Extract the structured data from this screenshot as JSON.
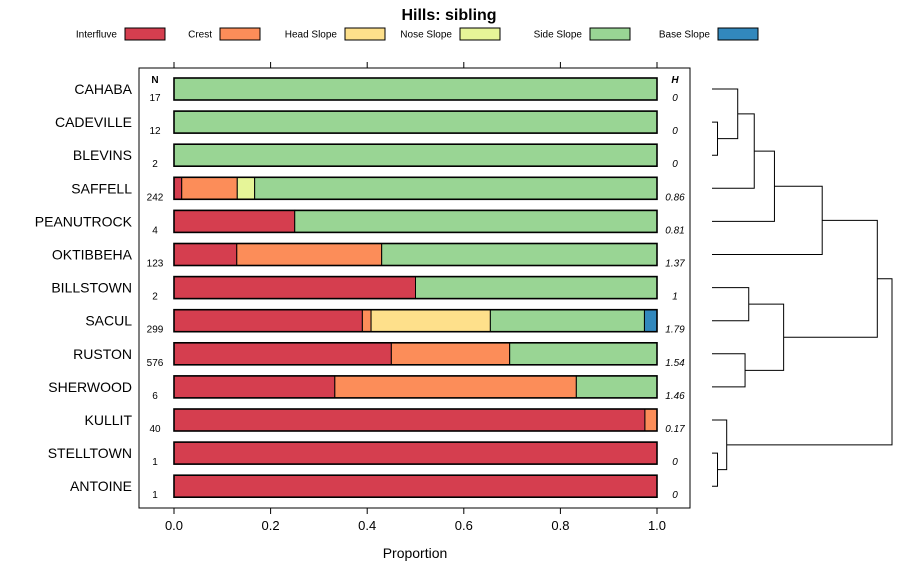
{
  "chart_data": {
    "type": "bar",
    "stacked": true,
    "orientation": "horizontal",
    "title": "Hills: sibling",
    "xlabel": "Proportion",
    "ylabel": "",
    "xlim": [
      0,
      1
    ],
    "x_ticks": [
      "0.0",
      "0.2",
      "0.4",
      "0.6",
      "0.8",
      "1.0"
    ],
    "legend_position": "top",
    "grid": false,
    "n_header": "N",
    "h_header": "H",
    "categories": [
      "CAHABA",
      "CADEVILLE",
      "BLEVINS",
      "SAFFELL",
      "PEANUTROCK",
      "OKTIBBEHA",
      "BILLSTOWN",
      "SACUL",
      "RUSTON",
      "SHERWOOD",
      "KULLIT",
      "STELLTOWN",
      "ANTOINE"
    ],
    "n": [
      "17",
      "12",
      "2",
      "242",
      "4",
      "123",
      "2",
      "299",
      "576",
      "6",
      "40",
      "1",
      "1"
    ],
    "h": [
      "0",
      "0",
      "0",
      "0.86",
      "0.81",
      "1.37",
      "1",
      "1.79",
      "1.54",
      "1.46",
      "0.17",
      "0",
      "0"
    ],
    "series": [
      {
        "name": "Interfluve",
        "color": "#D53E4F",
        "values": [
          0,
          0,
          0,
          0.016,
          0.25,
          0.13,
          0.5,
          0.39,
          0.45,
          0.333,
          0.975,
          1,
          1
        ]
      },
      {
        "name": "Crest",
        "color": "#FC8D59",
        "values": [
          0,
          0,
          0,
          0.115,
          0,
          0.3,
          0,
          0.018,
          0.245,
          0.5,
          0.025,
          0,
          0
        ]
      },
      {
        "name": "Head Slope",
        "color": "#FEE08B",
        "values": [
          0,
          0,
          0,
          0,
          0,
          0,
          0,
          0.247,
          0,
          0,
          0,
          0,
          0
        ]
      },
      {
        "name": "Nose Slope",
        "color": "#E6F598",
        "values": [
          0,
          0,
          0,
          0.036,
          0,
          0,
          0,
          0,
          0,
          0,
          0,
          0,
          0
        ]
      },
      {
        "name": "Side Slope",
        "color": "#99D594",
        "values": [
          1,
          1,
          1,
          0.833,
          0.75,
          0.57,
          0.5,
          0.319,
          0.305,
          0.167,
          0,
          0,
          0
        ]
      },
      {
        "name": "Base Slope",
        "color": "#3288BD",
        "values": [
          0,
          0,
          0,
          0,
          0,
          0,
          0,
          0.026,
          0,
          0,
          0,
          0,
          0
        ]
      }
    ],
    "dendrogram": {
      "merges": [
        {
          "a": "CADEVILLE",
          "b": "BLEVINS",
          "height": 0.3
        },
        {
          "a": "CAHABA",
          "b": "m0",
          "height": 1.4
        },
        {
          "a": "STELLTOWN",
          "b": "ANTOINE",
          "height": 0.3
        },
        {
          "a": "KULLIT",
          "b": "m2",
          "height": 0.8
        },
        {
          "a": "m1",
          "b": "SAFFELL",
          "height": 2.3
        },
        {
          "a": "m4",
          "b": "PEANUTROCK",
          "height": 3.4
        },
        {
          "a": "BILLSTOWN",
          "b": "SACUL",
          "height": 2.0
        },
        {
          "a": "RUSTON",
          "b": "SHERWOOD",
          "height": 1.8
        },
        {
          "a": "m6",
          "b": "m7",
          "height": 3.9
        },
        {
          "a": "m5",
          "b": "OKTIBBEHA",
          "height": 6.0
        },
        {
          "a": "m9",
          "b": "m8",
          "height": 9.0
        },
        {
          "a": "m10",
          "b": "m3",
          "height": 9.8
        }
      ]
    }
  }
}
